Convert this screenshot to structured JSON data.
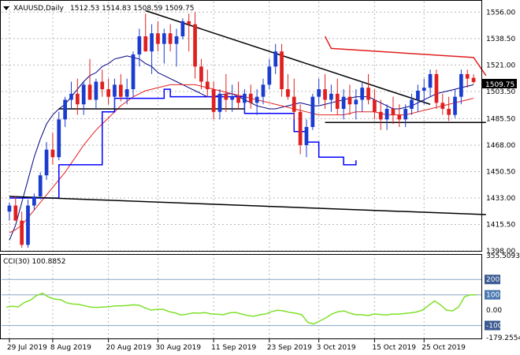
{
  "header": {
    "symbol_caption": "XAUUSD,Daily",
    "ohlc_caption": "1512.53 1514.83 1508.59 1509.75"
  },
  "colors": {
    "bull_candle": "#1a3ccf",
    "bear_candle": "#e02020",
    "trendline": "#000000",
    "ma_fast": "#000080",
    "ma_slow": "#e02020",
    "stop_blue": "#0000ff",
    "stop_red": "#e02020",
    "cci_line": "#7fe02a",
    "grid": "#b8b8b8",
    "price_tag_bg": "#000000"
  },
  "cci_panel": {
    "caption": "CCI(30) 100.8852",
    "tick_labels": [
      "355.5093",
      "200",
      "100",
      "0.00",
      "-100",
      "-179.2554"
    ],
    "levels": [
      200,
      100,
      -100
    ],
    "range": [
      -179.2554,
      355.5093
    ],
    "values": [
      20,
      25,
      22,
      50,
      65,
      95,
      110,
      85,
      72,
      68,
      48,
      40,
      38,
      28,
      20,
      18,
      20,
      22,
      28,
      28,
      30,
      35,
      32,
      15,
      0,
      5,
      5,
      -10,
      -18,
      -32,
      -26,
      -18,
      -20,
      -16,
      -25,
      -26,
      -30,
      -18,
      -15,
      -25,
      -35,
      -40,
      -30,
      -25,
      -10,
      0,
      -5,
      -15,
      -20,
      -30,
      -80,
      -90,
      -70,
      -50,
      -25,
      -10,
      -5,
      -20,
      -30,
      -30,
      -35,
      -25,
      -28,
      -32,
      -25,
      -26,
      -22,
      -18,
      -12,
      0,
      30,
      60,
      35,
      0,
      -5,
      20,
      88,
      100,
      100
    ]
  },
  "chart_data": {
    "type": "candlestick",
    "title": "XAUUSD,Daily",
    "price_axis_labels": [
      "1556.00",
      "1538.50",
      "1521.00",
      "1503.50",
      "1485.50",
      "1468.00",
      "1450.50",
      "1433.00",
      "1415.50",
      "1398.00"
    ],
    "date_axis_labels": [
      "29 Jul 2019",
      "8 Aug 2019",
      "20 Aug 2019",
      "30 Aug 2019",
      "11 Sep 2019",
      "23 Sep 2019",
      "3 Oct 2019",
      "15 Oct 2019",
      "25 Oct 2019"
    ],
    "last_price": "1509.75",
    "ylim": [
      1398,
      1563
    ],
    "candles_ohlc": [
      [
        1424,
        1430,
        1418,
        1428
      ],
      [
        1428,
        1434,
        1420,
        1418
      ],
      [
        1418,
        1424,
        1400,
        1402
      ],
      [
        1402,
        1432,
        1400,
        1428
      ],
      [
        1428,
        1436,
        1425,
        1434
      ],
      [
        1434,
        1450,
        1432,
        1448
      ],
      [
        1448,
        1470,
        1445,
        1465
      ],
      [
        1465,
        1476,
        1455,
        1460
      ],
      [
        1460,
        1490,
        1458,
        1485
      ],
      [
        1485,
        1500,
        1480,
        1498
      ],
      [
        1498,
        1510,
        1492,
        1502
      ],
      [
        1502,
        1512,
        1488,
        1495
      ],
      [
        1495,
        1510,
        1488,
        1508
      ],
      [
        1508,
        1525,
        1500,
        1498
      ],
      [
        1498,
        1512,
        1492,
        1510
      ],
      [
        1510,
        1518,
        1500,
        1505
      ],
      [
        1505,
        1512,
        1495,
        1500
      ],
      [
        1500,
        1512,
        1492,
        1508
      ],
      [
        1508,
        1515,
        1497,
        1500
      ],
      [
        1500,
        1512,
        1495,
        1505
      ],
      [
        1505,
        1530,
        1500,
        1528
      ],
      [
        1528,
        1545,
        1520,
        1540
      ],
      [
        1540,
        1555,
        1530,
        1530
      ],
      [
        1530,
        1548,
        1515,
        1542
      ],
      [
        1542,
        1550,
        1530,
        1535
      ],
      [
        1535,
        1545,
        1522,
        1542
      ],
      [
        1542,
        1548,
        1530,
        1535
      ],
      [
        1535,
        1545,
        1520,
        1540
      ],
      [
        1540,
        1552,
        1538,
        1550
      ],
      [
        1550,
        1555,
        1530,
        1548
      ],
      [
        1548,
        1556,
        1512,
        1520
      ],
      [
        1520,
        1525,
        1505,
        1510
      ],
      [
        1510,
        1518,
        1500,
        1505
      ],
      [
        1505,
        1510,
        1485,
        1490
      ],
      [
        1490,
        1505,
        1485,
        1502
      ],
      [
        1502,
        1515,
        1490,
        1498
      ],
      [
        1498,
        1508,
        1490,
        1500
      ],
      [
        1500,
        1510,
        1492,
        1496
      ],
      [
        1496,
        1505,
        1490,
        1502
      ],
      [
        1502,
        1508,
        1492,
        1496
      ],
      [
        1496,
        1505,
        1488,
        1500
      ],
      [
        1500,
        1512,
        1495,
        1508
      ],
      [
        1508,
        1525,
        1505,
        1520
      ],
      [
        1520,
        1535,
        1515,
        1530
      ],
      [
        1530,
        1535,
        1500,
        1505
      ],
      [
        1505,
        1515,
        1498,
        1500
      ],
      [
        1500,
        1512,
        1485,
        1490
      ],
      [
        1490,
        1495,
        1462,
        1468
      ],
      [
        1468,
        1485,
        1460,
        1480
      ],
      [
        1480,
        1502,
        1478,
        1500
      ],
      [
        1500,
        1512,
        1495,
        1505
      ],
      [
        1505,
        1515,
        1492,
        1498
      ],
      [
        1498,
        1508,
        1490,
        1502
      ],
      [
        1502,
        1512,
        1488,
        1492
      ],
      [
        1492,
        1505,
        1485,
        1500
      ],
      [
        1500,
        1508,
        1488,
        1495
      ],
      [
        1495,
        1505,
        1485,
        1498
      ],
      [
        1498,
        1510,
        1490,
        1506
      ],
      [
        1506,
        1515,
        1495,
        1498
      ],
      [
        1498,
        1505,
        1485,
        1490
      ],
      [
        1490,
        1498,
        1478,
        1485
      ],
      [
        1485,
        1495,
        1478,
        1492
      ],
      [
        1492,
        1500,
        1482,
        1488
      ],
      [
        1488,
        1495,
        1480,
        1485
      ],
      [
        1485,
        1495,
        1480,
        1492
      ],
      [
        1492,
        1502,
        1488,
        1498
      ],
      [
        1498,
        1508,
        1490,
        1504
      ],
      [
        1504,
        1512,
        1495,
        1506
      ],
      [
        1506,
        1518,
        1500,
        1515
      ],
      [
        1515,
        1518,
        1492,
        1496
      ],
      [
        1496,
        1502,
        1488,
        1492
      ],
      [
        1492,
        1500,
        1484,
        1488
      ],
      [
        1488,
        1505,
        1486,
        1500
      ],
      [
        1500,
        1518,
        1495,
        1515
      ],
      [
        1515,
        1518,
        1506,
        1512
      ],
      [
        1512.53,
        1514.83,
        1508.59,
        1509.75
      ]
    ],
    "series": [
      {
        "values": [
          1405,
          1415,
          1430,
          1445,
          1460,
          1472,
          1482,
          1488,
          1492,
          1495,
          1500,
          1505,
          1510,
          1514,
          1516,
          1520,
          1522,
          1525,
          1526,
          1527,
          1526,
          1525,
          1522,
          1520,
          1516,
          1514,
          1512,
          1510,
          1508,
          1506,
          1504,
          1502,
          1500,
          1500,
          1501,
          1502,
          1502,
          1500,
          1498,
          1496,
          1494,
          1493,
          1492,
          1492,
          1493,
          1494,
          1495,
          1496,
          1495,
          1494,
          1494,
          1495,
          1496,
          1497,
          1498,
          1499,
          1500,
          1500,
          1500,
          1498,
          1496,
          1494,
          1492,
          1492,
          1493,
          1494,
          1496,
          1498,
          1500,
          1502,
          1503,
          1504,
          1505,
          1506,
          1507,
          1508
        ]
      },
      {
        "values": [
          1410,
          1412,
          1415,
          1420,
          1425,
          1430,
          1435,
          1440,
          1445,
          1450,
          1456,
          1462,
          1468,
          1473,
          1478,
          1482,
          1486,
          1490,
          1494,
          1497,
          1500,
          1502,
          1504,
          1505,
          1506,
          1507,
          1508,
          1508,
          1508,
          1508,
          1508,
          1507,
          1506,
          1505,
          1504,
          1503,
          1502,
          1501,
          1500,
          1499,
          1498,
          1497,
          1496,
          1495,
          1494,
          1493,
          1492,
          1491,
          1490,
          1489,
          1488,
          1488,
          1488,
          1488,
          1488,
          1489,
          1490,
          1490,
          1490,
          1490,
          1489,
          1488,
          1488,
          1488,
          1488,
          1489,
          1490,
          1491,
          1492,
          1493,
          1494,
          1495,
          1496,
          1497,
          1498,
          1499
        ]
      },
      {
        "values": [
          1433,
          1455,
          1490,
          1499,
          1505,
          1500,
          1489,
          1477,
          1470,
          1460,
          1455,
          1458
        ]
      },
      {
        "values": [
          1540,
          1532,
          1526,
          1514
        ]
      }
    ]
  }
}
